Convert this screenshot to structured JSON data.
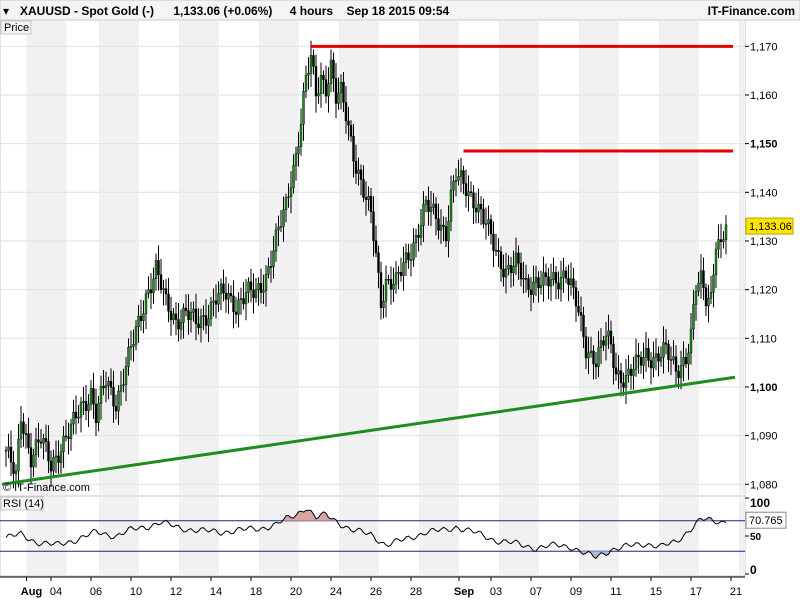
{
  "header": {
    "symbol": "XAUUSD - Spot Gold (-)",
    "quote": "1,133.06 (+0.06%)",
    "timeframe": "4 hours",
    "datetime": "Sep 18 2015 09:54",
    "brand": "IT-Finance.com"
  },
  "price_panel": {
    "label": "Price",
    "watermark": "© IT-Finance.com",
    "last_price_label": "1,133.06"
  },
  "rsi_panel": {
    "label": "RSI (14)",
    "value_label": "70.765"
  },
  "colors": {
    "up_candle": "#1e8c1e",
    "down_candle": "#000000",
    "resistance": "#e60000",
    "support": "#1e8c1e",
    "rsi_line": "#000000",
    "rsi_overbought_fill": "#d9a6a6",
    "rsi_oversold_fill": "#a6bfd9",
    "rsi_band": "#20208a"
  },
  "chart_data": [
    {
      "type": "candlestick",
      "title": "XAUUSD - Spot Gold (-)",
      "ylim": [
        1078,
        1175
      ],
      "y_ticks": [
        {
          "value": 1080,
          "label": "1,080",
          "bold": false
        },
        {
          "value": 1090,
          "label": "1,090",
          "bold": false
        },
        {
          "value": 1100,
          "label": "1,100",
          "bold": true
        },
        {
          "value": 1110,
          "label": "1,110",
          "bold": false
        },
        {
          "value": 1120,
          "label": "1,120",
          "bold": false
        },
        {
          "value": 1130,
          "label": "1,130",
          "bold": false
        },
        {
          "value": 1140,
          "label": "1,140",
          "bold": false
        },
        {
          "value": 1150,
          "label": "1,150",
          "bold": true
        },
        {
          "value": 1160,
          "label": "1,160",
          "bold": false
        },
        {
          "value": 1170,
          "label": "1,170",
          "bold": false
        }
      ],
      "x_ticks": [
        {
          "bar": 5,
          "label": "Aug",
          "bold": true
        },
        {
          "bar": 18,
          "label": "04",
          "bold": false
        },
        {
          "bar": 34,
          "label": "06",
          "bold": false
        },
        {
          "bar": 50,
          "label": "10",
          "bold": false
        },
        {
          "bar": 66,
          "label": "12",
          "bold": false
        },
        {
          "bar": 82,
          "label": "14",
          "bold": false
        },
        {
          "bar": 98,
          "label": "18",
          "bold": false
        },
        {
          "bar": 114,
          "label": "20",
          "bold": false
        },
        {
          "bar": 130,
          "label": "24",
          "bold": false
        },
        {
          "bar": 146,
          "label": "26",
          "bold": false
        },
        {
          "bar": 162,
          "label": "28",
          "bold": false
        },
        {
          "bar": 178,
          "label": "Sep",
          "bold": true
        },
        {
          "bar": 194,
          "label": "03",
          "bold": false
        },
        {
          "bar": 210,
          "label": "07",
          "bold": false
        },
        {
          "bar": 226,
          "label": "09",
          "bold": false
        },
        {
          "bar": 242,
          "label": "11",
          "bold": false
        },
        {
          "bar": 258,
          "label": "15",
          "bold": false
        },
        {
          "bar": 274,
          "label": "17",
          "bold": false
        },
        {
          "bar": 290,
          "label": "21",
          "bold": false
        }
      ],
      "last_price": 1133.06,
      "ohlc_anchors": [
        [
          0,
          1087
        ],
        [
          4,
          1081
        ],
        [
          6,
          1094
        ],
        [
          10,
          1086
        ],
        [
          14,
          1089
        ],
        [
          18,
          1084
        ],
        [
          22,
          1088
        ],
        [
          26,
          1091
        ],
        [
          30,
          1096
        ],
        [
          34,
          1099
        ],
        [
          36,
          1094
        ],
        [
          40,
          1101
        ],
        [
          44,
          1097
        ],
        [
          48,
          1104
        ],
        [
          52,
          1111
        ],
        [
          56,
          1119
        ],
        [
          60,
          1124
        ],
        [
          64,
          1117
        ],
        [
          68,
          1114
        ],
        [
          72,
          1115
        ],
        [
          76,
          1113
        ],
        [
          80,
          1115
        ],
        [
          84,
          1118
        ],
        [
          88,
          1119
        ],
        [
          92,
          1117
        ],
        [
          96,
          1119
        ],
        [
          100,
          1119
        ],
        [
          104,
          1123
        ],
        [
          108,
          1130
        ],
        [
          112,
          1137
        ],
        [
          114,
          1143
        ],
        [
          116,
          1148
        ],
        [
          118,
          1155
        ],
        [
          120,
          1163
        ],
        [
          122,
          1167
        ],
        [
          124,
          1160
        ],
        [
          126,
          1164
        ],
        [
          128,
          1162
        ],
        [
          130,
          1166
        ],
        [
          132,
          1159
        ],
        [
          134,
          1160
        ],
        [
          136,
          1156
        ],
        [
          138,
          1151
        ],
        [
          140,
          1146
        ],
        [
          142,
          1142
        ],
        [
          144,
          1138
        ],
        [
          146,
          1135
        ],
        [
          148,
          1127
        ],
        [
          150,
          1118
        ],
        [
          152,
          1122
        ],
        [
          156,
          1121
        ],
        [
          160,
          1126
        ],
        [
          164,
          1131
        ],
        [
          168,
          1137
        ],
        [
          172,
          1135
        ],
        [
          176,
          1132
        ],
        [
          178,
          1139
        ],
        [
          180,
          1143
        ],
        [
          184,
          1141
        ],
        [
          188,
          1138
        ],
        [
          192,
          1133
        ],
        [
          196,
          1128
        ],
        [
          200,
          1124
        ],
        [
          204,
          1125
        ],
        [
          208,
          1121
        ],
        [
          212,
          1122
        ],
        [
          216,
          1121
        ],
        [
          220,
          1122
        ],
        [
          224,
          1124
        ],
        [
          228,
          1117
        ],
        [
          232,
          1108
        ],
        [
          236,
          1106
        ],
        [
          240,
          1110
        ],
        [
          242,
          1108
        ],
        [
          244,
          1103
        ],
        [
          248,
          1102
        ],
        [
          252,
          1104
        ],
        [
          256,
          1107
        ],
        [
          260,
          1106
        ],
        [
          264,
          1107
        ],
        [
          268,
          1104
        ],
        [
          272,
          1106
        ],
        [
          274,
          1110
        ],
        [
          276,
          1120
        ],
        [
          278,
          1122
        ],
        [
          280,
          1119
        ],
        [
          282,
          1119
        ],
        [
          284,
          1130
        ],
        [
          286,
          1128
        ],
        [
          288,
          1133
        ]
      ],
      "num_bars": 289,
      "resistance_lines": [
        {
          "bar0": 122,
          "bar1": 293,
          "price": 1170
        },
        {
          "bar0": 183,
          "bar1": 293,
          "price": 1148.5
        }
      ],
      "support_line": {
        "bar0": 0,
        "price0": 1080,
        "bar1": 294,
        "price1": 1102
      }
    },
    {
      "type": "line",
      "title": "RSI (14)",
      "ylim": [
        0,
        100
      ],
      "y_ticks": [
        {
          "value": 100,
          "label": "100"
        },
        {
          "value": 50,
          "label": "50"
        },
        {
          "value": 0,
          "label": "0"
        }
      ],
      "overbought": 70,
      "oversold": 30,
      "last_value": 70.765,
      "rsi_anchors": [
        [
          0,
          48
        ],
        [
          6,
          52
        ],
        [
          12,
          42
        ],
        [
          20,
          38
        ],
        [
          28,
          45
        ],
        [
          36,
          55
        ],
        [
          44,
          50
        ],
        [
          50,
          58
        ],
        [
          56,
          62
        ],
        [
          62,
          68
        ],
        [
          70,
          60
        ],
        [
          78,
          57
        ],
        [
          86,
          55
        ],
        [
          94,
          58
        ],
        [
          102,
          60
        ],
        [
          108,
          65
        ],
        [
          112,
          72
        ],
        [
          116,
          78
        ],
        [
          120,
          88
        ],
        [
          124,
          74
        ],
        [
          128,
          78
        ],
        [
          132,
          70
        ],
        [
          138,
          58
        ],
        [
          146,
          52
        ],
        [
          152,
          38
        ],
        [
          160,
          46
        ],
        [
          168,
          55
        ],
        [
          176,
          58
        ],
        [
          180,
          62
        ],
        [
          188,
          54
        ],
        [
          196,
          44
        ],
        [
          204,
          40
        ],
        [
          212,
          34
        ],
        [
          220,
          38
        ],
        [
          226,
          36
        ],
        [
          232,
          26
        ],
        [
          236,
          22
        ],
        [
          242,
          32
        ],
        [
          248,
          36
        ],
        [
          256,
          40
        ],
        [
          262,
          36
        ],
        [
          268,
          42
        ],
        [
          274,
          60
        ],
        [
          278,
          72
        ],
        [
          282,
          70
        ],
        [
          286,
          68
        ],
        [
          288,
          71
        ]
      ]
    }
  ]
}
